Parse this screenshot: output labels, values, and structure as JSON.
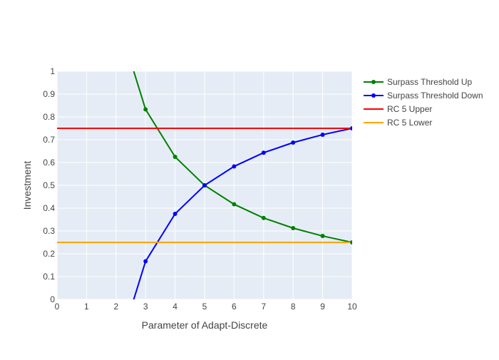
{
  "chart_data": {
    "type": "line",
    "title": "",
    "xlabel": "Parameter of Adapt-Discrete",
    "ylabel": "Investment",
    "xlim": [
      0,
      10
    ],
    "ylim": [
      0,
      1
    ],
    "x_ticks": [
      "0",
      "1",
      "2",
      "3",
      "4",
      "5",
      "6",
      "7",
      "8",
      "9",
      "10"
    ],
    "y_ticks": [
      "0",
      "0.1",
      "0.2",
      "0.3",
      "0.4",
      "0.5",
      "0.6",
      "0.7",
      "0.8",
      "0.9",
      "1"
    ],
    "grid": true,
    "legend_position": "right",
    "series": [
      {
        "name": "Surpass Threshold Up",
        "color": "#008000",
        "markers": true,
        "x": [
          2,
          3,
          4,
          5,
          6,
          7,
          8,
          9,
          10
        ],
        "y": [
          1.25,
          0.833,
          0.625,
          0.5,
          0.417,
          0.357,
          0.3125,
          0.278,
          0.25
        ]
      },
      {
        "name": "Surpass Threshold Down",
        "color": "#0000ff",
        "markers": true,
        "x": [
          2,
          3,
          4,
          5,
          6,
          7,
          8,
          9,
          10
        ],
        "y": [
          -0.25,
          0.167,
          0.375,
          0.5,
          0.583,
          0.643,
          0.6875,
          0.722,
          0.75
        ]
      },
      {
        "name": "RC 5 Upper",
        "color": "#ff0000",
        "markers": false,
        "x": [
          0,
          10
        ],
        "y": [
          0.75,
          0.75
        ]
      },
      {
        "name": "RC 5 Lower",
        "color": "#ffa500",
        "markers": false,
        "x": [
          0,
          10
        ],
        "y": [
          0.25,
          0.25
        ]
      }
    ]
  }
}
